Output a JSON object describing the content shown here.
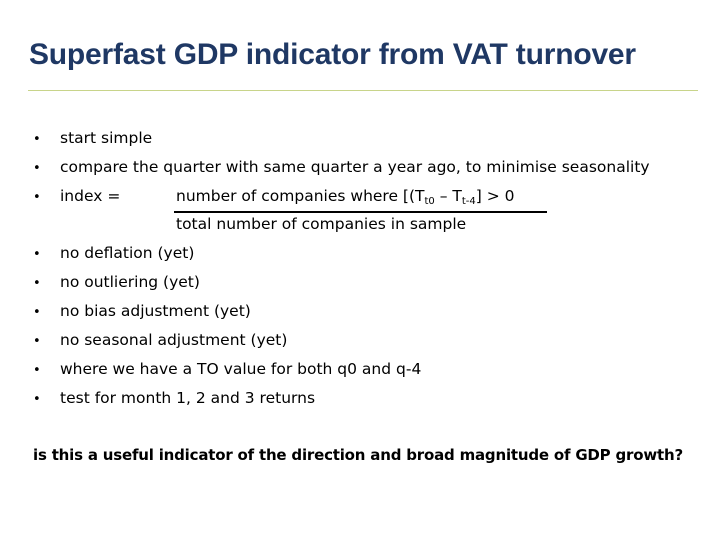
{
  "slide": {
    "title": "Superfast GDP indicator from VAT turnover",
    "bullet_symbol": "•",
    "bullets_top": [
      "start simple",
      "compare the quarter with same quarter a year ago, to minimise seasonality"
    ],
    "index": {
      "lhs": "index =",
      "numerator_prefix": "number of companies where [(T",
      "sub1": "t0",
      "numerator_mid": " – T",
      "sub2": "t-4",
      "numerator_suffix": "] > 0",
      "denominator": "total number of companies in sample"
    },
    "bullets_bottom": [
      "no deflation (yet)",
      "no outliering (yet)",
      "no bias adjustment (yet)",
      "no seasonal adjustment (yet)",
      "where we have a TO value for both q0 and q-4",
      "test for month 1, 2 and 3 returns"
    ],
    "question": "is this a useful indicator of the direction and broad magnitude of GDP growth?"
  },
  "colors": {
    "title": "#1f3864",
    "rule": "#c8d48a",
    "text": "#000000"
  }
}
